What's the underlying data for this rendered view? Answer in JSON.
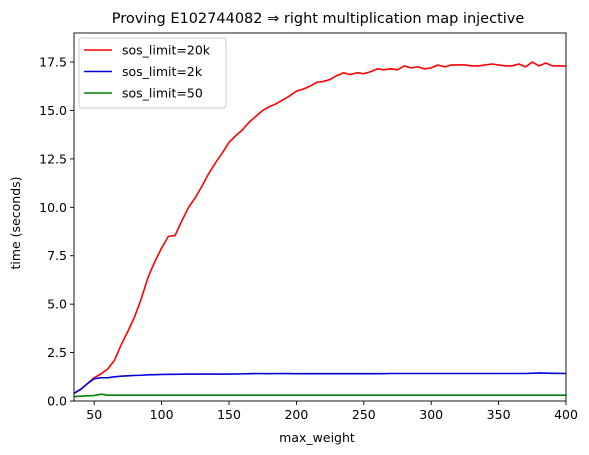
{
  "chart_data": {
    "type": "line",
    "title": "Proving E102744082 ⇒ right multiplication map injective",
    "xlabel": "max_weight",
    "ylabel": "time (seconds)",
    "xlim": [
      35,
      400
    ],
    "ylim": [
      0,
      19
    ],
    "xticks": [
      50,
      100,
      150,
      200,
      250,
      300,
      350,
      400
    ],
    "yticks": [
      0.0,
      2.5,
      5.0,
      7.5,
      10.0,
      12.5,
      15.0,
      17.5
    ],
    "xtick_labels": [
      "50",
      "100",
      "150",
      "200",
      "250",
      "300",
      "350",
      "400"
    ],
    "ytick_labels": [
      "0.0",
      "2.5",
      "5.0",
      "7.5",
      "10.0",
      "12.5",
      "15.0",
      "17.5"
    ],
    "grid": false,
    "legend_position": "top-left",
    "series": [
      {
        "name": "sos_limit=20k",
        "color": "#ff0000",
        "x": [
          35,
          40,
          45,
          50,
          55,
          60,
          65,
          70,
          75,
          80,
          85,
          90,
          95,
          100,
          105,
          110,
          115,
          120,
          125,
          130,
          135,
          140,
          145,
          150,
          155,
          160,
          165,
          170,
          175,
          180,
          185,
          190,
          195,
          200,
          205,
          210,
          215,
          220,
          225,
          230,
          235,
          240,
          245,
          250,
          255,
          260,
          265,
          270,
          275,
          280,
          285,
          290,
          295,
          300,
          305,
          310,
          315,
          320,
          325,
          330,
          335,
          340,
          345,
          350,
          355,
          360,
          365,
          370,
          375,
          380,
          385,
          390,
          395,
          400
        ],
        "y": [
          0.4,
          0.6,
          0.9,
          1.2,
          1.4,
          1.65,
          2.1,
          2.9,
          3.6,
          4.35,
          5.3,
          6.4,
          7.2,
          7.9,
          8.5,
          8.55,
          9.3,
          10.0,
          10.5,
          11.1,
          11.75,
          12.3,
          12.8,
          13.35,
          13.7,
          14.0,
          14.4,
          14.7,
          15.0,
          15.2,
          15.35,
          15.55,
          15.75,
          16.0,
          16.1,
          16.25,
          16.45,
          16.5,
          16.6,
          16.8,
          16.95,
          16.85,
          16.95,
          16.9,
          17.0,
          17.15,
          17.1,
          17.15,
          17.1,
          17.3,
          17.2,
          17.25,
          17.15,
          17.2,
          17.35,
          17.25,
          17.35,
          17.35,
          17.35,
          17.3,
          17.3,
          17.35,
          17.4,
          17.35,
          17.3,
          17.3,
          17.4,
          17.25,
          17.5,
          17.3,
          17.45,
          17.3,
          17.3,
          17.3
        ]
      },
      {
        "name": "sos_limit=2k",
        "color": "#0000dd",
        "x": [
          35,
          40,
          45,
          50,
          55,
          60,
          65,
          70,
          75,
          80,
          85,
          90,
          95,
          100,
          110,
          120,
          130,
          140,
          150,
          160,
          170,
          180,
          190,
          200,
          210,
          220,
          230,
          240,
          250,
          260,
          270,
          280,
          290,
          300,
          310,
          320,
          330,
          340,
          350,
          360,
          370,
          380,
          390,
          400
        ],
        "y": [
          0.4,
          0.6,
          0.9,
          1.15,
          1.2,
          1.2,
          1.25,
          1.28,
          1.3,
          1.32,
          1.33,
          1.35,
          1.36,
          1.37,
          1.38,
          1.39,
          1.39,
          1.39,
          1.39,
          1.4,
          1.42,
          1.41,
          1.42,
          1.41,
          1.41,
          1.41,
          1.41,
          1.41,
          1.41,
          1.41,
          1.42,
          1.42,
          1.42,
          1.42,
          1.42,
          1.42,
          1.42,
          1.42,
          1.42,
          1.42,
          1.42,
          1.45,
          1.43,
          1.42
        ]
      },
      {
        "name": "sos_limit=50",
        "color": "#008000",
        "x": [
          35,
          40,
          45,
          50,
          55,
          60,
          70,
          80,
          100,
          150,
          200,
          250,
          300,
          350,
          400
        ],
        "y": [
          0.22,
          0.25,
          0.27,
          0.28,
          0.35,
          0.3,
          0.3,
          0.3,
          0.3,
          0.3,
          0.3,
          0.3,
          0.3,
          0.3,
          0.3
        ]
      }
    ]
  }
}
